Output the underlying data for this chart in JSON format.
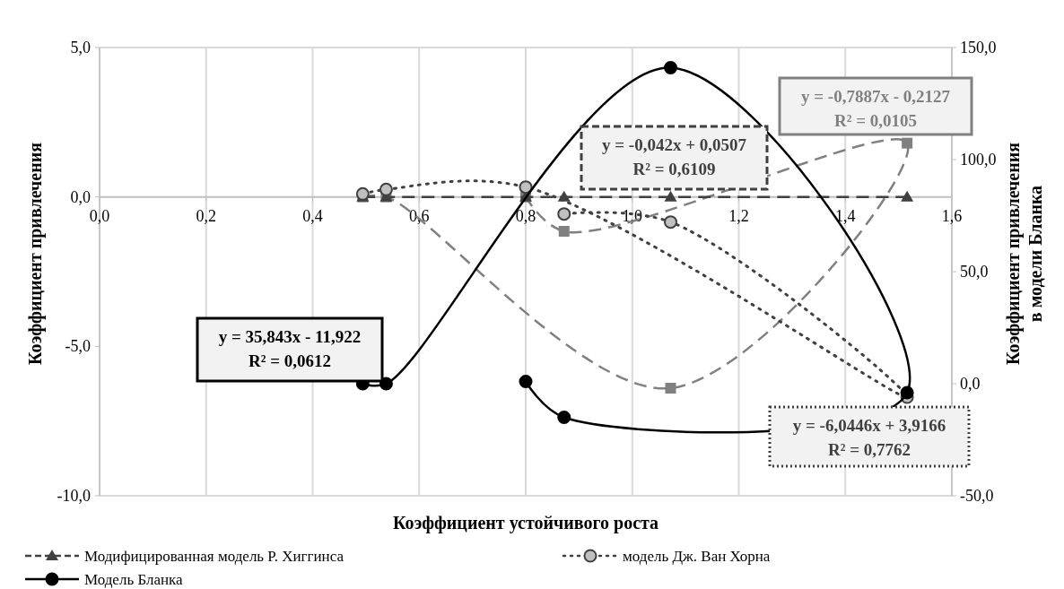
{
  "chart_data": {
    "type": "line",
    "xlabel": "Коэффициент устойчивого роста",
    "ylabel": "Коэффициент привлечения",
    "y2label": "Коэффициент привлечения в модели Бланка",
    "xlim": [
      0,
      1.6
    ],
    "xticks": [
      {
        "value": 0,
        "label": "0,0"
      },
      {
        "value": 0.2,
        "label": "0,2"
      },
      {
        "value": 0.4,
        "label": "0,4"
      },
      {
        "value": 0.6,
        "label": "0,6"
      },
      {
        "value": 0.8,
        "label": "0,8"
      },
      {
        "value": 1.0,
        "label": "1,0"
      },
      {
        "value": 1.2,
        "label": "1,2"
      },
      {
        "value": 1.4,
        "label": "1,4"
      },
      {
        "value": 1.6,
        "label": "1,6"
      }
    ],
    "ylim": [
      -10,
      5
    ],
    "yticks": [
      {
        "value": -10,
        "label": "-10,0"
      },
      {
        "value": -5,
        "label": "-5,0"
      },
      {
        "value": 0,
        "label": "0,0"
      },
      {
        "value": 5,
        "label": "5,0"
      }
    ],
    "y2lim": [
      -50,
      150
    ],
    "y2ticks": [
      {
        "value": -50,
        "label": "-50,0"
      },
      {
        "value": 0,
        "label": "0,0"
      },
      {
        "value": 50,
        "label": "50,0"
      },
      {
        "value": 100,
        "label": "100,0"
      },
      {
        "value": 150,
        "label": "150,0"
      }
    ],
    "grid": "x",
    "legend": "bottom",
    "series": [
      {
        "color": "#808080",
        "marker": "square",
        "line_style": "dashed",
        "x": [
          0.494,
          0.538,
          1.072,
          1.516,
          0.872,
          0.8
        ],
        "values": [
          0,
          0,
          -6.4,
          1.8,
          -1.15,
          0
        ]
      },
      {
        "name": "Модифицированная модель Р. Хиггинса",
        "color": "#404040",
        "marker": "triangle",
        "line_style": "dashed",
        "x": [
          0.494,
          0.538,
          0.8,
          0.872,
          1.072,
          1.516
        ],
        "values": [
          0,
          0,
          0,
          0,
          0,
          0
        ]
      },
      {
        "name": "модель Дж. Ван Хорна",
        "color": "#404040",
        "marker": "circle",
        "line_style": "dotted",
        "x": [
          0.494,
          0.538,
          0.8,
          1.516,
          1.072,
          0.872
        ],
        "values": [
          0.1,
          0.25,
          0.33,
          -6.7,
          -0.84,
          -0.57
        ]
      },
      {
        "name": "Модель Бланка",
        "color": "#000000",
        "marker": "circle",
        "line_style": "solid",
        "axis": "y2",
        "x": [
          0.494,
          0.538,
          1.072,
          1.516,
          0.872,
          0.8
        ],
        "values": [
          0,
          0,
          141,
          -4,
          -15,
          1
        ]
      }
    ],
    "annotations": [
      "y = 35,843x - 11,922\nR² = 0,0612",
      "y = -0,042x + 0,0507\nR² = 0,6109",
      "y = -0,7887x - 0,2127\nR² = 0,0105",
      "y = -6,0446x + 3,9166\nR² = 0,7762"
    ]
  }
}
